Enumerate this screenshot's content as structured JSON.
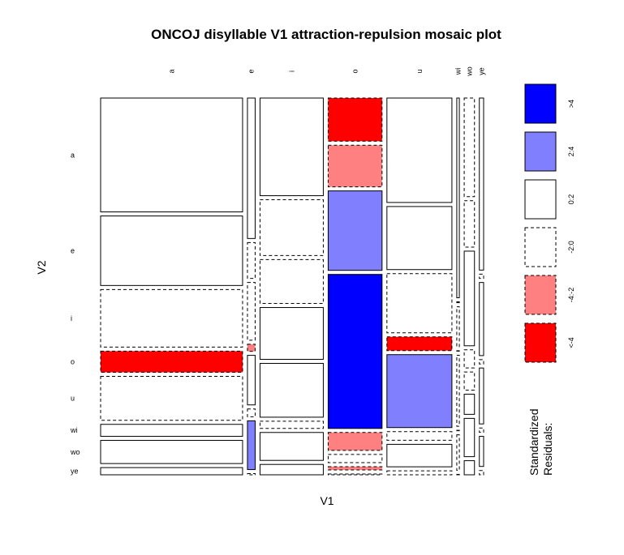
{
  "chart_data": {
    "type": "mosaic",
    "title": "ONCOJ disyllable V1 attraction-repulsion mosaic plot",
    "xlabel": "V1",
    "ylabel": "V2",
    "x_categories": [
      "a",
      "e",
      "i",
      "o",
      "u",
      "wi",
      "wo",
      "ye"
    ],
    "y_categories": [
      "a",
      "e",
      "i",
      "o",
      "u",
      "wi",
      "wo",
      "ye"
    ],
    "column_shares": [
      0.332,
      0.018,
      0.148,
      0.126,
      0.152,
      0.006,
      0.024,
      0.01
    ],
    "cells": [
      {
        "x": "a",
        "segments": [
          {
            "y": "a",
            "share": 0.285,
            "level": "0:2"
          },
          {
            "y": "e",
            "share": 0.174,
            "level": "0:2"
          },
          {
            "y": "i",
            "share": 0.144,
            "level": "-2:0"
          },
          {
            "y": "o",
            "share": 0.053,
            "level": "<-4"
          },
          {
            "y": "u",
            "share": 0.11,
            "level": "-2:0"
          },
          {
            "y": "wi",
            "share": 0.03,
            "level": "0:2"
          },
          {
            "y": "wo",
            "share": 0.058,
            "level": "0:2"
          },
          {
            "y": "ye",
            "share": 0.018,
            "level": "0:2"
          }
        ]
      },
      {
        "x": "e",
        "segments": [
          {
            "y": "a",
            "share": 0.36,
            "level": "0:2"
          },
          {
            "y": "e",
            "share": 0.092,
            "level": "-2:0"
          },
          {
            "y": "i",
            "share": 0.148,
            "level": "-2:0"
          },
          {
            "y": "o",
            "share": 0.018,
            "level": "-4:-2"
          },
          {
            "y": "u",
            "share": 0.127,
            "level": "0:2"
          },
          {
            "y": "wi",
            "share": 0.02,
            "level": "-2:0"
          },
          {
            "y": "wo",
            "share": 0.125,
            "level": "2:4"
          },
          {
            "y": "ye",
            "share": 0.003,
            "level": "-2:0"
          }
        ]
      },
      {
        "x": "i",
        "segments": [
          {
            "y": "a",
            "share": 0.245,
            "level": "0:2"
          },
          {
            "y": "e",
            "share": 0.14,
            "level": "-2:0"
          },
          {
            "y": "i",
            "share": 0.11,
            "level": "-2:0"
          },
          {
            "y": "o",
            "share": 0.13,
            "level": "0:2"
          },
          {
            "y": "u",
            "share": 0.135,
            "level": "0:2"
          },
          {
            "y": "wi",
            "share": 0.018,
            "level": "-2:0"
          },
          {
            "y": "wo",
            "share": 0.07,
            "level": "0:2"
          },
          {
            "y": "ye",
            "share": 0.026,
            "level": "0:2"
          }
        ]
      },
      {
        "x": "o",
        "segments": [
          {
            "y": "a",
            "share": 0.106,
            "level": "<-4"
          },
          {
            "y": "e",
            "share": 0.102,
            "level": "-4:-2"
          },
          {
            "y": "i",
            "share": 0.195,
            "level": "2:4"
          },
          {
            "y": "o",
            "share": 0.378,
            "level": ">4"
          },
          {
            "y": "u",
            "share": 0.044,
            "level": "-4:-2"
          },
          {
            "y": "wi",
            "share": 0.02,
            "level": "-2:0"
          },
          {
            "y": "wo",
            "share": 0.008,
            "level": "-4:-2"
          },
          {
            "y": "ye",
            "share": 0.002,
            "level": "-2:0"
          }
        ]
      },
      {
        "x": "u",
        "segments": [
          {
            "y": "a",
            "share": 0.265,
            "level": "0:2"
          },
          {
            "y": "e",
            "share": 0.16,
            "level": "0:2"
          },
          {
            "y": "i",
            "share": 0.15,
            "level": "-2:0"
          },
          {
            "y": "o",
            "share": 0.035,
            "level": "<-4"
          },
          {
            "y": "u",
            "share": 0.185,
            "level": "2:4"
          },
          {
            "y": "wi",
            "share": 0.022,
            "level": "-2:0"
          },
          {
            "y": "wo",
            "share": 0.057,
            "level": "0:2"
          },
          {
            "y": "ye",
            "share": 0.01,
            "level": "-2:0"
          }
        ]
      },
      {
        "x": "wi",
        "segments": [
          {
            "y": "a",
            "share": 0.45,
            "level": "0:2"
          },
          {
            "y": "e",
            "share": 0.002,
            "level": "0:2"
          },
          {
            "y": "i",
            "share": 0.09,
            "level": "-2:0"
          },
          {
            "y": "o",
            "share": 0.001,
            "level": "0:2"
          },
          {
            "y": "u",
            "share": 0.16,
            "level": "-2:0"
          },
          {
            "y": "wi",
            "share": 0.001,
            "level": "0:2"
          },
          {
            "y": "wo",
            "share": 0.08,
            "level": "-2:0"
          },
          {
            "y": "ye",
            "share": 0.001,
            "level": "0:2"
          }
        ]
      },
      {
        "x": "wo",
        "segments": [
          {
            "y": "a",
            "share": 0.245,
            "level": "-2:0"
          },
          {
            "y": "e",
            "share": 0.115,
            "level": "-2:0"
          },
          {
            "y": "i",
            "share": 0.235,
            "level": "0:2"
          },
          {
            "y": "o",
            "share": 0.045,
            "level": "-2:0"
          },
          {
            "y": "u",
            "share": 0.045,
            "level": "-2:0"
          },
          {
            "y": "wi",
            "share": 0.05,
            "level": "0:2"
          },
          {
            "y": "wo",
            "share": 0.095,
            "level": "0:2"
          },
          {
            "y": "ye",
            "share": 0.035,
            "level": "0:2"
          }
        ]
      },
      {
        "x": "ye",
        "segments": [
          {
            "y": "a",
            "share": 0.4,
            "level": "0:2"
          },
          {
            "y": "e",
            "share": 0.01,
            "level": "-2:0"
          },
          {
            "y": "i",
            "share": 0.17,
            "level": "0:2"
          },
          {
            "y": "o",
            "share": 0.01,
            "level": "-2:0"
          },
          {
            "y": "u",
            "share": 0.13,
            "level": "0:2"
          },
          {
            "y": "wi",
            "share": 0.01,
            "level": "-2:0"
          },
          {
            "y": "wo",
            "share": 0.07,
            "level": "0:2"
          },
          {
            "y": "ye",
            "share": 0.01,
            "level": "-2:0"
          }
        ]
      }
    ],
    "legend": {
      "title_lines": [
        "Standardized",
        "Residuals:"
      ],
      "placement": "right",
      "entries": [
        {
          "label": ">4",
          "color": "#0000ff",
          "dashed": false
        },
        {
          "label": "2:4",
          "color": "#8080ff",
          "dashed": false
        },
        {
          "label": "0:2",
          "color": "#ffffff",
          "dashed": false
        },
        {
          "label": "-2:0",
          "color": "#ffffff",
          "dashed": true
        },
        {
          "label": "-4:-2",
          "color": "#ff8080",
          "dashed": true
        },
        {
          "label": "<-4",
          "color": "#ff0000",
          "dashed": true
        }
      ]
    }
  }
}
